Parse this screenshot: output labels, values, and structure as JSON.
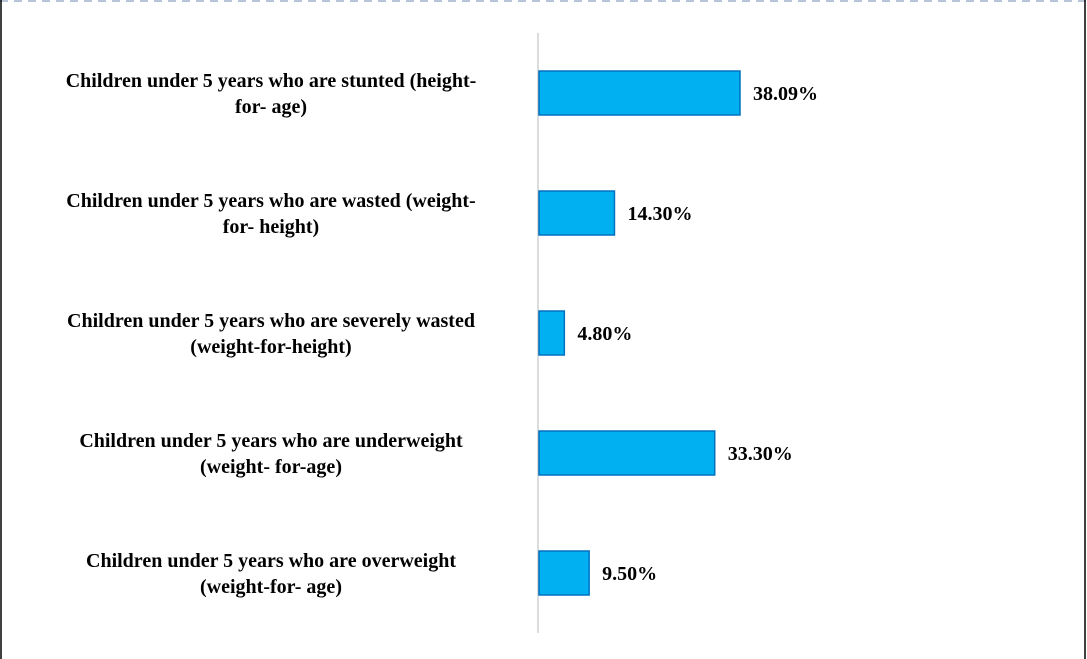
{
  "chart_data": {
    "type": "bar",
    "orientation": "horizontal",
    "categories": [
      [
        "Children under 5 years who are stunted (height-",
        "for- age)"
      ],
      [
        "Children under 5 years who are wasted (weight-",
        "for- height)"
      ],
      [
        "Children under 5 years who are severely wasted",
        "(weight-for-height)"
      ],
      [
        "Children under 5 years who are underweight",
        "(weight- for-age)"
      ],
      [
        "Children under 5 years who are overweight",
        "(weight-for- age)"
      ]
    ],
    "values": [
      38.09,
      14.3,
      4.8,
      33.3,
      9.5
    ],
    "value_labels": [
      "38.09%",
      "14.30%",
      "4.80%",
      "33.30%",
      "9.50%"
    ],
    "xlim": [
      0,
      60
    ],
    "grid": false,
    "legend": "none",
    "bar_color": "#00B0F0",
    "bar_edge_color": "#0070C0"
  }
}
